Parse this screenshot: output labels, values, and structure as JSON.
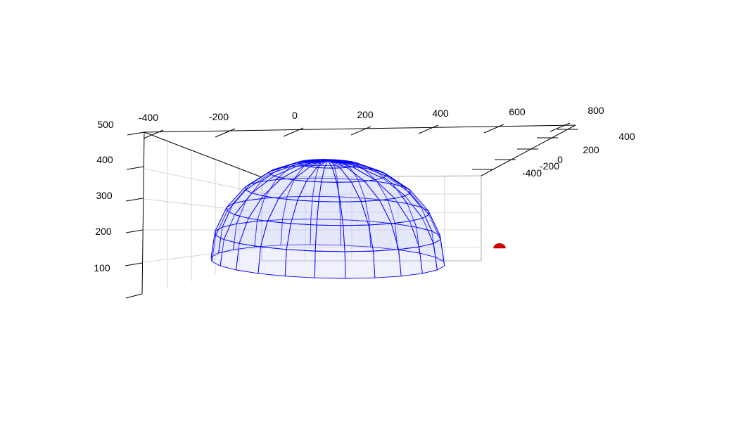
{
  "chart_data": {
    "type": "3d-surface",
    "title": "",
    "axes": {
      "x": {
        "label": "",
        "ticks": [
          "-400",
          "-200",
          "0",
          "200",
          "400",
          "600",
          "800"
        ]
      },
      "y": {
        "label": "",
        "ticks": [
          "-400",
          "-200",
          "0",
          "200",
          "400"
        ]
      },
      "z": {
        "label": "",
        "ticks": [
          "100",
          "200",
          "300",
          "400",
          "500"
        ]
      }
    },
    "grid": true,
    "objects": [
      {
        "shape": "hemisphere",
        "style": "wireframe-translucent",
        "center_x": 0,
        "center_y": 0,
        "base_z": 0,
        "radius": 500,
        "color": "#0000ff",
        "fill_color": "#c8ccf4"
      },
      {
        "shape": "hemisphere",
        "style": "solid",
        "center_x": 800,
        "center_y": -400,
        "base_z": 0,
        "radius": 25,
        "color": "#cc0000"
      }
    ]
  }
}
